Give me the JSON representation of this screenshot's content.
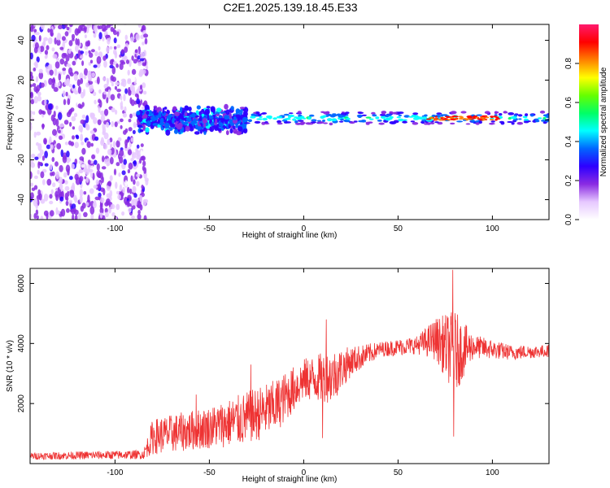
{
  "figure_title": "C2E1.2025.139.18.45.E33",
  "chart_data": [
    {
      "type": "heatmap",
      "xlabel": "Height of straight line (km)",
      "ylabel": "Frequency (Hz)",
      "xlim": [
        -145,
        130
      ],
      "ylim": [
        -50,
        48
      ],
      "x_ticks": [
        -100,
        -50,
        0,
        50,
        100
      ],
      "y_ticks": [
        -40,
        -20,
        0,
        20,
        40
      ],
      "colorbar": {
        "label": "Normalized spectral amplitude",
        "range": [
          0,
          1
        ],
        "ticks": [
          "0.0",
          "0.2",
          "0.4",
          "0.6",
          "0.8"
        ],
        "colormap": [
          "#ffffff",
          "#e6c8ff",
          "#8a2be2",
          "#2d00ff",
          "#0066ff",
          "#00ffff",
          "#00ff66",
          "#66ff00",
          "#ffff00",
          "#ff8000",
          "#ff0000",
          "#ff1a6e"
        ]
      },
      "regions": [
        {
          "x": [
            -145,
            -83
          ],
          "freq_center": 0,
          "freq_halfwidth": 50,
          "amplitude": 0.12,
          "pattern": "scattered-noise"
        },
        {
          "x": [
            -88,
            -30
          ],
          "freq_center": 0,
          "freq_halfwidth": 6,
          "amplitude": 0.3,
          "pattern": "noisy-band"
        },
        {
          "x": [
            -30,
            130
          ],
          "freq_center": 1,
          "freq_halfwidth": 3,
          "amplitude": 0.5,
          "pattern": "steady-line"
        },
        {
          "x": [
            65,
            103
          ],
          "freq_center": 1,
          "freq_halfwidth": 1,
          "amplitude": 0.95,
          "pattern": "peak-line"
        }
      ]
    },
    {
      "type": "line",
      "xlabel": "Height of straight line (km)",
      "ylabel": "SNR (10 * v/v)",
      "xlim": [
        -145,
        130
      ],
      "ylim": [
        0,
        6500
      ],
      "x_ticks": [
        -100,
        -50,
        0,
        50,
        100
      ],
      "y_ticks": [
        2000,
        4000,
        6000
      ],
      "color": "#ee3333",
      "series_envelope": [
        {
          "x": -145,
          "y": 250,
          "spread": 120
        },
        {
          "x": -85,
          "y": 300,
          "spread": 150
        },
        {
          "x": -80,
          "y": 900,
          "spread": 600
        },
        {
          "x": -50,
          "y": 1200,
          "spread": 700
        },
        {
          "x": -30,
          "y": 1500,
          "spread": 900
        },
        {
          "x": -15,
          "y": 1900,
          "spread": 900
        },
        {
          "x": 0,
          "y": 2800,
          "spread": 700
        },
        {
          "x": 15,
          "y": 2900,
          "spread": 900
        },
        {
          "x": 25,
          "y": 3400,
          "spread": 500
        },
        {
          "x": 40,
          "y": 3800,
          "spread": 250
        },
        {
          "x": 60,
          "y": 3950,
          "spread": 300
        },
        {
          "x": 70,
          "y": 4150,
          "spread": 700
        },
        {
          "x": 80,
          "y": 3700,
          "spread": 1400
        },
        {
          "x": 90,
          "y": 3900,
          "spread": 400
        },
        {
          "x": 110,
          "y": 3700,
          "spread": 250
        },
        {
          "x": 130,
          "y": 3750,
          "spread": 200
        }
      ],
      "spikes": [
        {
          "x": 79,
          "y": 6450
        },
        {
          "x": 79.5,
          "y": 900
        },
        {
          "x": 12,
          "y": 4800
        },
        {
          "x": 10,
          "y": 850
        },
        {
          "x": -28,
          "y": 3300
        },
        {
          "x": -57,
          "y": 2300
        }
      ]
    }
  ]
}
